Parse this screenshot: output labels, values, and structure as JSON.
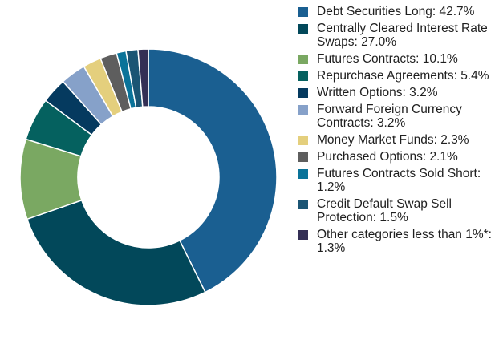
{
  "chart_data": {
    "type": "pie",
    "donut": true,
    "legend_position": "right",
    "start_angle_deg": 0,
    "direction": "clockwise",
    "slices": [
      {
        "label": "Debt Securities Long: 42.7%",
        "value": 42.7,
        "color": "#1a5f91"
      },
      {
        "label": "Centrally Cleared Interest Rate Swaps: 27.0%",
        "value": 27.0,
        "color": "#02485a"
      },
      {
        "label": "Futures Contracts: 10.1%",
        "value": 10.1,
        "color": "#7aa862"
      },
      {
        "label": "Repurchase Agreements: 5.4%",
        "value": 5.4,
        "color": "#05615f"
      },
      {
        "label": "Written Options: 3.2%",
        "value": 3.2,
        "color": "#053a5f"
      },
      {
        "label": "Forward Foreign Currency Contracts: 3.2%",
        "value": 3.2,
        "color": "#86a1c9"
      },
      {
        "label": "Money Market Funds: 2.3%",
        "value": 2.3,
        "color": "#e4cf7d"
      },
      {
        "label": "Purchased Options: 2.1%",
        "value": 2.1,
        "color": "#5e5e5e"
      },
      {
        "label": "Futures Contracts Sold Short: 1.2%",
        "value": 1.2,
        "color": "#0a7399"
      },
      {
        "label": "Credit Default Swap Sell Protection: 1.5%",
        "value": 1.5,
        "color": "#1b5574"
      },
      {
        "label": "Other categories less than 1%*: 1.3%",
        "value": 1.3,
        "color": "#342f55"
      }
    ]
  }
}
